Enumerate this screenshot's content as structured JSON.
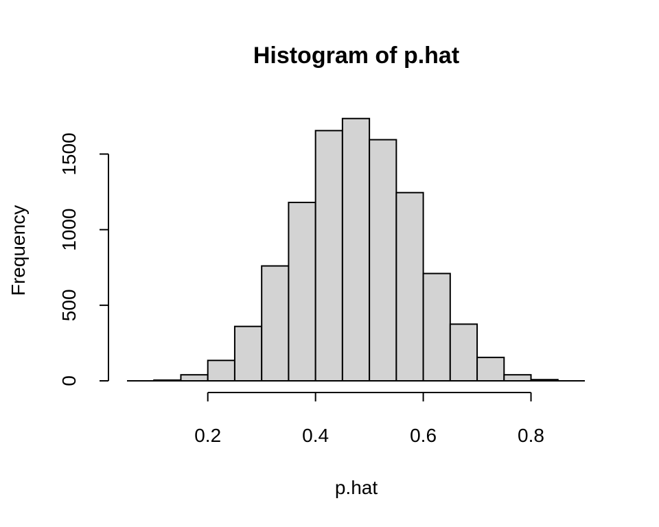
{
  "chart_data": {
    "type": "bar",
    "title": "Histogram of p.hat",
    "xlabel": "p.hat",
    "ylabel": "Frequency",
    "bin_edges": [
      0.1,
      0.15,
      0.2,
      0.25,
      0.3,
      0.35,
      0.4,
      0.45,
      0.5,
      0.55,
      0.6,
      0.65,
      0.7,
      0.75,
      0.8,
      0.85
    ],
    "values": [
      5,
      40,
      135,
      360,
      760,
      1180,
      1655,
      1735,
      1595,
      1245,
      710,
      375,
      155,
      40,
      8
    ],
    "xlim": [
      0.05,
      0.9
    ],
    "ylim": [
      0,
      1820
    ],
    "x_ticks": [
      0.2,
      0.4,
      0.6,
      0.8
    ],
    "x_tick_labels": [
      "0.2",
      "0.4",
      "0.6",
      "0.8"
    ],
    "y_ticks": [
      0,
      500,
      1000,
      1500
    ],
    "y_tick_labels": [
      "0",
      "500",
      "1000",
      "1500"
    ],
    "grid": false,
    "legend": "none"
  }
}
